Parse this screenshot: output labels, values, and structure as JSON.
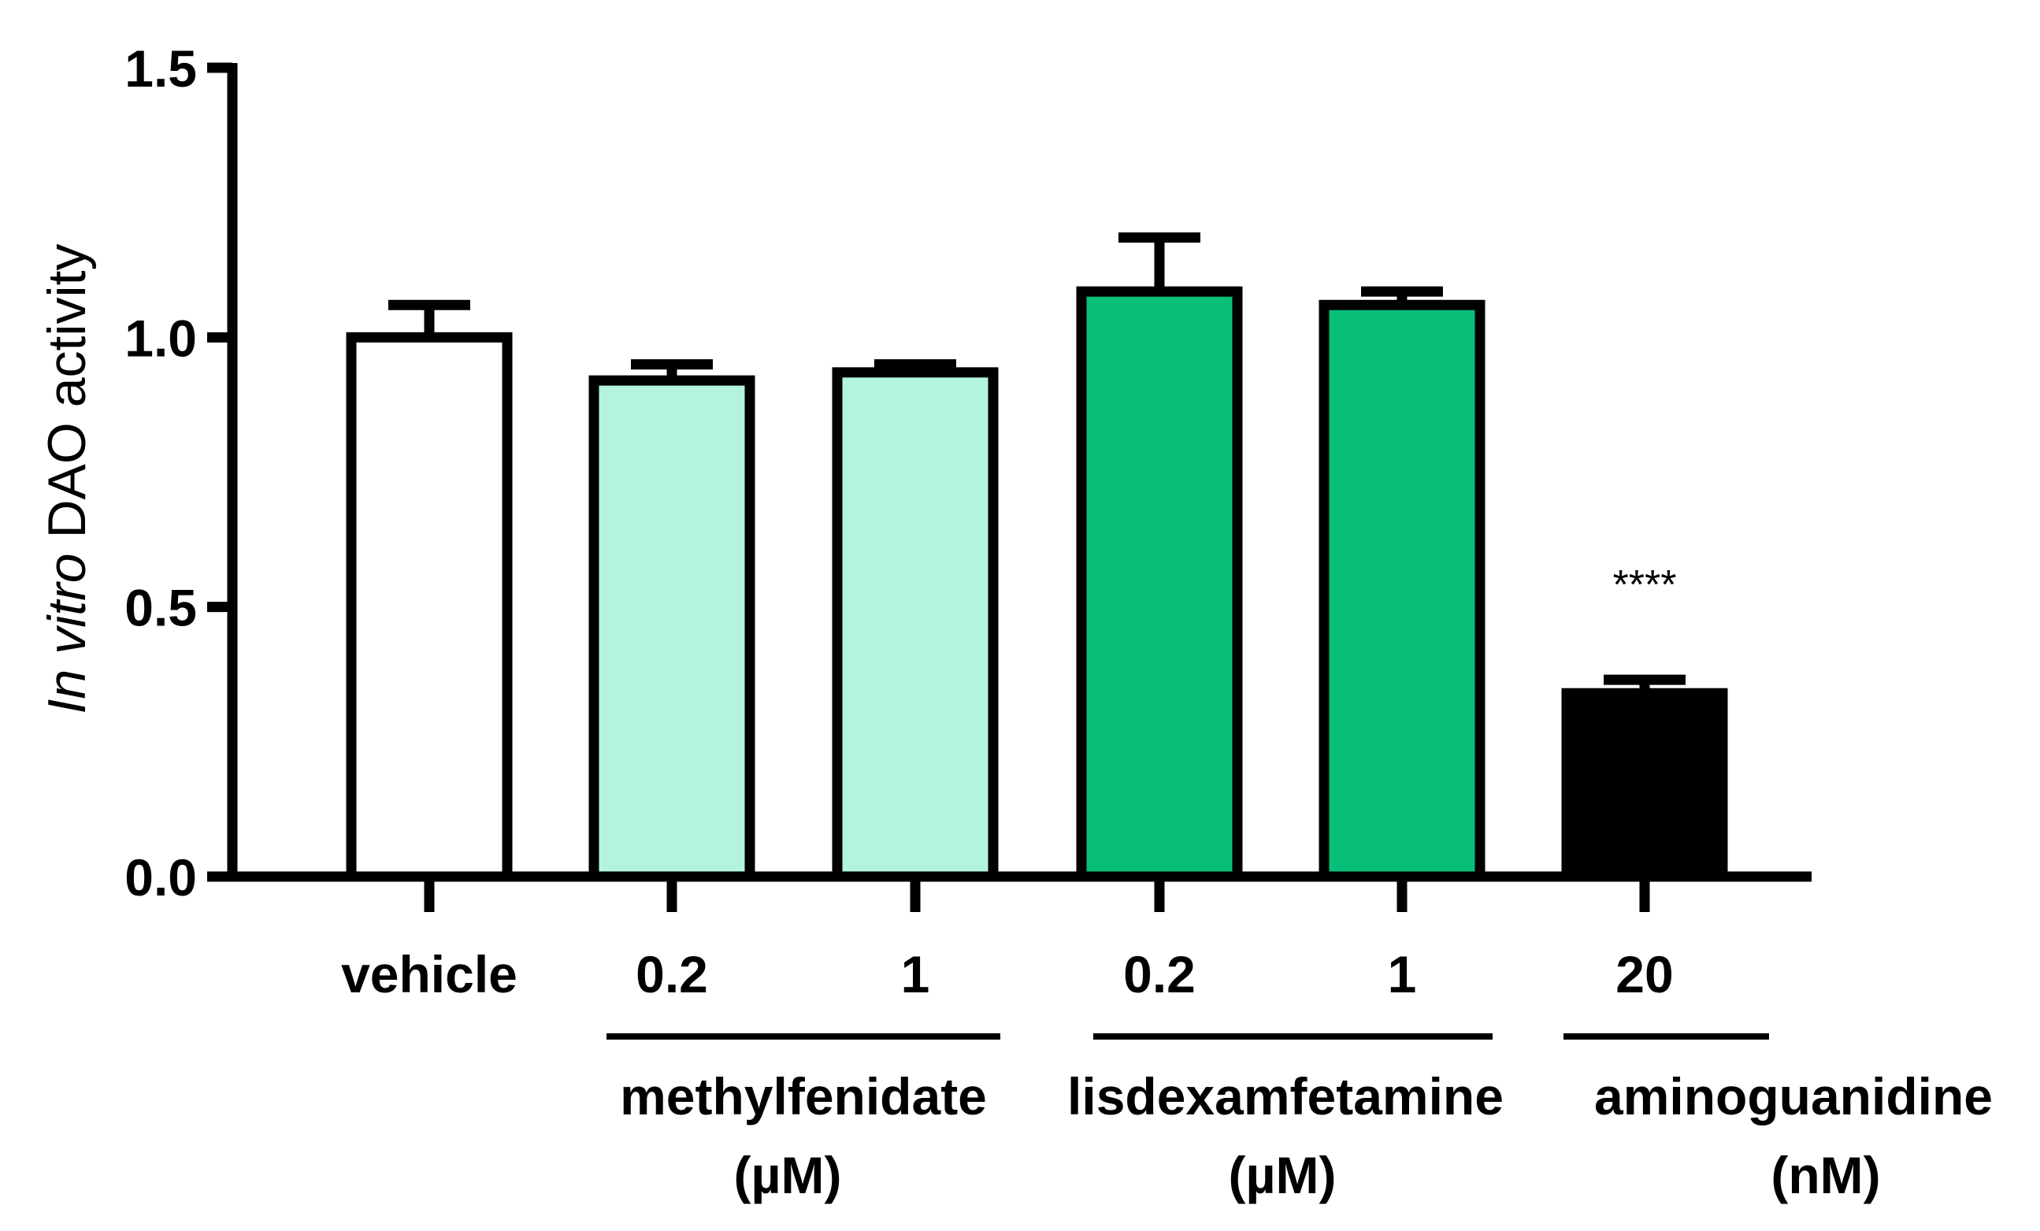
{
  "chart_data": {
    "type": "bar",
    "title": "",
    "ylabel_italic": "In vitro",
    "ylabel_rest": " DAO activity",
    "xlabel": "",
    "ylim": [
      0,
      1.5
    ],
    "yticks": [
      0.0,
      0.5,
      1.0,
      1.5
    ],
    "ytick_labels": [
      "0.0",
      "0.5",
      "1.0",
      "1.5"
    ],
    "categories": [
      "vehicle",
      "0.2",
      "1",
      "0.2",
      "1",
      "20"
    ],
    "values": [
      1.0,
      0.92,
      0.935,
      1.085,
      1.06,
      0.34
    ],
    "errors": [
      0.06,
      0.03,
      0.015,
      0.1,
      0.025,
      0.025
    ],
    "colors": [
      "#ffffff",
      "#b3f4dc",
      "#b3f4dc",
      "#08bf7a",
      "#08bf7a",
      "#000000"
    ],
    "annotations": [
      {
        "category_index": 5,
        "text": "****"
      }
    ],
    "groups": [
      {
        "label": "methylfenidate",
        "unit": "(µM)",
        "categories": [
          1,
          2
        ]
      },
      {
        "label": "lisdexamfetamine",
        "unit": "(µM)",
        "categories": [
          3,
          4
        ]
      },
      {
        "label": "aminoguanidine",
        "unit": "(nM)",
        "categories": [
          5
        ]
      }
    ],
    "grid": false,
    "legend": "none"
  }
}
